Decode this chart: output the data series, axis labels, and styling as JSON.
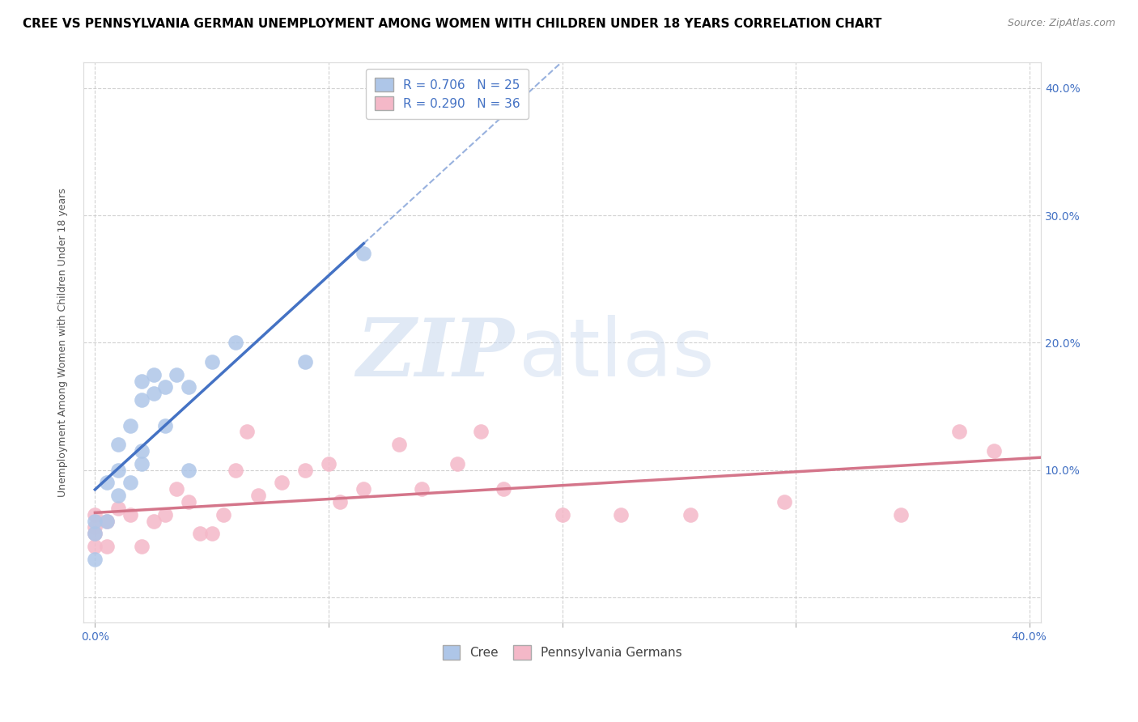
{
  "title": "CREE VS PENNSYLVANIA GERMAN UNEMPLOYMENT AMONG WOMEN WITH CHILDREN UNDER 18 YEARS CORRELATION CHART",
  "source": "Source: ZipAtlas.com",
  "ylabel": "Unemployment Among Women with Children Under 18 years",
  "xlabel": "",
  "xlim": [
    -0.005,
    0.405
  ],
  "ylim": [
    -0.02,
    0.42
  ],
  "xticks": [
    0.0,
    0.1,
    0.2,
    0.3,
    0.4
  ],
  "yticks": [
    0.0,
    0.1,
    0.2,
    0.3,
    0.4
  ],
  "xticklabels_ends": [
    "0.0%",
    "40.0%"
  ],
  "ytick_labels_right": [
    "",
    "10.0%",
    "20.0%",
    "30.0%",
    "40.0%"
  ],
  "background_color": "#ffffff",
  "grid_color": "#cccccc",
  "cree_color": "#aec6e8",
  "penn_color": "#f4b8c8",
  "cree_line_color": "#4472c4",
  "penn_line_color": "#d4758a",
  "legend_R1": "R = 0.706",
  "legend_N1": "N = 25",
  "legend_R2": "R = 0.290",
  "legend_N2": "N = 36",
  "cree_x": [
    0.0,
    0.0,
    0.0,
    0.005,
    0.005,
    0.01,
    0.01,
    0.01,
    0.015,
    0.015,
    0.02,
    0.02,
    0.02,
    0.02,
    0.025,
    0.025,
    0.03,
    0.03,
    0.035,
    0.04,
    0.04,
    0.05,
    0.06,
    0.09,
    0.115
  ],
  "cree_y": [
    0.03,
    0.05,
    0.06,
    0.06,
    0.09,
    0.08,
    0.1,
    0.12,
    0.09,
    0.135,
    0.105,
    0.115,
    0.155,
    0.17,
    0.16,
    0.175,
    0.165,
    0.135,
    0.175,
    0.165,
    0.1,
    0.185,
    0.2,
    0.185,
    0.27
  ],
  "penn_x": [
    0.0,
    0.0,
    0.0,
    0.0,
    0.005,
    0.005,
    0.01,
    0.015,
    0.02,
    0.025,
    0.03,
    0.035,
    0.04,
    0.045,
    0.05,
    0.055,
    0.06,
    0.065,
    0.07,
    0.08,
    0.09,
    0.1,
    0.105,
    0.115,
    0.13,
    0.14,
    0.155,
    0.165,
    0.175,
    0.2,
    0.225,
    0.255,
    0.295,
    0.345,
    0.37,
    0.385
  ],
  "penn_y": [
    0.04,
    0.05,
    0.055,
    0.065,
    0.04,
    0.06,
    0.07,
    0.065,
    0.04,
    0.06,
    0.065,
    0.085,
    0.075,
    0.05,
    0.05,
    0.065,
    0.1,
    0.13,
    0.08,
    0.09,
    0.1,
    0.105,
    0.075,
    0.085,
    0.12,
    0.085,
    0.105,
    0.13,
    0.085,
    0.065,
    0.065,
    0.065,
    0.075,
    0.065,
    0.13,
    0.115
  ],
  "watermark_zip": "ZIP",
  "watermark_atlas": "atlas",
  "title_fontsize": 11,
  "axis_fontsize": 9,
  "tick_fontsize": 10,
  "legend_fontsize": 11,
  "source_fontsize": 9,
  "tick_color": "#4472c4"
}
